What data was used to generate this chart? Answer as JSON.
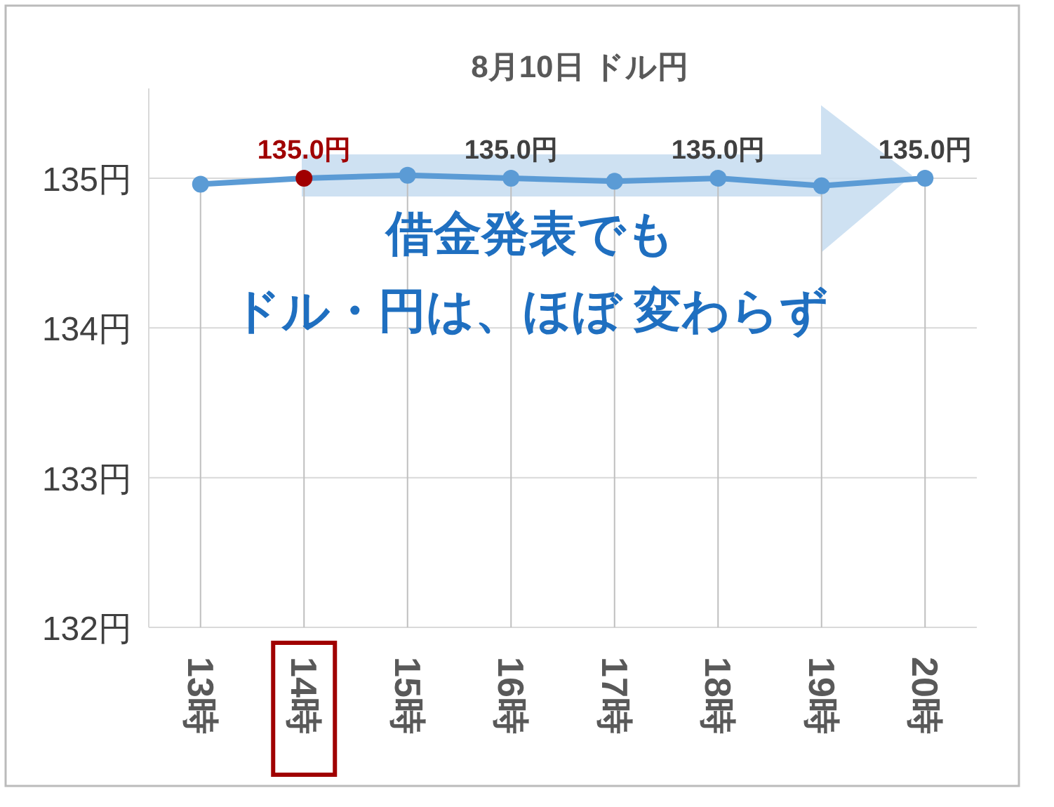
{
  "chart_data": {
    "type": "line",
    "title": "8月10日  ドル円",
    "categories": [
      "13時",
      "14時",
      "15時",
      "16時",
      "17時",
      "18時",
      "19時",
      "20時"
    ],
    "series": [
      {
        "color": "#5b9bd5",
        "colors": [
          "#5b9bd5",
          "#a00000",
          "#5b9bd5",
          "#5b9bd5",
          "#5b9bd5",
          "#5b9bd5",
          "#5b9bd5",
          "#5b9bd5"
        ],
        "values": [
          134.96,
          135.0,
          135.02,
          135.0,
          134.98,
          135.0,
          134.95,
          135.0
        ],
        "value_labels": [
          null,
          "135.0円",
          null,
          "135.0円",
          null,
          "135.0円",
          null,
          "135.0円"
        ]
      }
    ],
    "ylim": [
      132,
      135.6
    ],
    "yticks": [
      {
        "value": 132,
        "label": "132円"
      },
      {
        "value": 133,
        "label": "133円"
      },
      {
        "value": 134,
        "label": "134円"
      },
      {
        "value": 135,
        "label": "135円"
      }
    ],
    "grid": true,
    "marker": "circle",
    "line_style": "solid",
    "annotations": [
      "借金発表でも",
      "ドル・円は、ほぼ 変わらず"
    ]
  }
}
